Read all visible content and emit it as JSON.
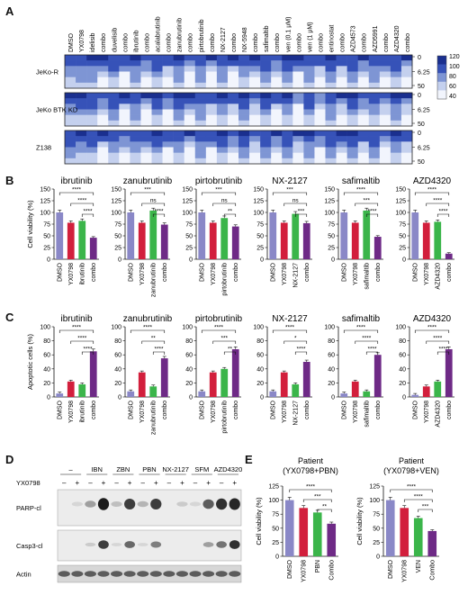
{
  "panels": {
    "a": "A",
    "b": "B",
    "c": "C",
    "d": "D",
    "e": "E"
  },
  "heatmap": {
    "columns": [
      "DMSO",
      "YX0798",
      "idelisib",
      "combo",
      "duvelisib",
      "combo",
      "ibrutinib",
      "combo",
      "acalabrutinib",
      "combo",
      "zanubrutinib",
      "combo",
      "pirtobrutinib",
      "combo",
      "NX-2127",
      "combo",
      "NX-5948",
      "combo",
      "safimaltib",
      "combo",
      "ven (0.1 μM)",
      "combo",
      "ven (1 μM)",
      "combo",
      "entinostat",
      "combo",
      "AZD4573",
      "combo",
      "AZD5991",
      "combo",
      "AZD4320",
      "combo"
    ],
    "rows": [
      {
        "label": "JeKo-R",
        "ticks": [
          "0",
          "6.25",
          "50"
        ]
      },
      {
        "label": "JeKo BTK KD",
        "ticks": [
          "0",
          "6.25",
          "50"
        ]
      },
      {
        "label": "Z138",
        "ticks": [
          "0",
          "6.25",
          "50"
        ]
      }
    ],
    "colorbar": {
      "ticks": [
        "120",
        "100",
        "80",
        "60",
        "40"
      ],
      "colors": [
        "#1a2f8f",
        "#3652b8",
        "#7e95d4",
        "#c4d0ee",
        "#f2f5fd"
      ]
    }
  },
  "viability_bars": {
    "ylabel": "Cell viability (%)",
    "yticks": [
      "0",
      "25",
      "50",
      "75",
      "100",
      "125",
      "150"
    ],
    "groups": [
      {
        "title": "ibrutinib",
        "labels": [
          "DMSO",
          "YX0798",
          "ibrutinib",
          "combo"
        ],
        "sig": [
          "****",
          "****",
          "****"
        ]
      },
      {
        "title": "zanubrutinib",
        "labels": [
          "DMSO",
          "YX0798",
          "zanubrutinib",
          "combo"
        ],
        "sig": [
          "***",
          "ns",
          "****"
        ]
      },
      {
        "title": "pirtobrutinib",
        "labels": [
          "DMSO",
          "YX0798",
          "pirtobrutinib",
          "combo"
        ],
        "sig": [
          "***",
          "ns",
          "**"
        ]
      },
      {
        "title": "NX-2127",
        "labels": [
          "DMSO",
          "YX0798",
          "NX-2127",
          "combo"
        ],
        "sig": [
          "***",
          "ns",
          "***"
        ]
      },
      {
        "title": "safimaltib",
        "labels": [
          "DMSO",
          "YX0798",
          "safimaltib",
          "combo"
        ],
        "sig": [
          "****",
          "***",
          "****"
        ]
      },
      {
        "title": "AZD4320",
        "labels": [
          "DMSO",
          "YX0798",
          "AZD4320",
          "combo"
        ],
        "sig": [
          "****",
          "****",
          "****"
        ]
      }
    ]
  },
  "apoptosis_bars": {
    "ylabel": "Apoptotic cells (%)",
    "yticks": [
      "0",
      "20",
      "40",
      "60",
      "80",
      "100"
    ],
    "groups": [
      {
        "title": "ibrutinib",
        "labels": [
          "DMSO",
          "YX0798",
          "ibrutinib",
          "combo"
        ],
        "sig": [
          "****",
          "****",
          "****"
        ]
      },
      {
        "title": "zanubrutinib",
        "labels": [
          "DMSO",
          "YX0798",
          "zanubrutinib",
          "combo"
        ],
        "sig": [
          "****",
          "**",
          "****"
        ]
      },
      {
        "title": "pirtobrutinib",
        "labels": [
          "DMSO",
          "YX0798",
          "pirtobrutinib",
          "combo"
        ],
        "sig": [
          "****",
          "***",
          "**"
        ]
      },
      {
        "title": "NX-2127",
        "labels": [
          "DMSO",
          "YX0798",
          "NX-2127",
          "combo"
        ],
        "sig": [
          "****",
          "*",
          "****"
        ]
      },
      {
        "title": "safimaltib",
        "labels": [
          "DMSO",
          "YX0798",
          "safimaltib",
          "combo"
        ],
        "sig": [
          "****",
          "****",
          "****"
        ]
      },
      {
        "title": "AZD4320",
        "labels": [
          "DMSO",
          "YX0798",
          "AZD4320",
          "combo"
        ],
        "sig": [
          "****",
          "****",
          "****"
        ]
      }
    ]
  },
  "western": {
    "groups": [
      "–",
      "IBN",
      "ZBN",
      "PBN",
      "NX-2127",
      "SFM",
      "AZD4320"
    ],
    "yx_label": "YX0798",
    "yx_signs": [
      "–",
      "+",
      "–",
      "+",
      "–",
      "+",
      "–",
      "+",
      "–",
      "+",
      "–",
      "+",
      "–",
      "+"
    ],
    "bands": [
      "PARP-cl",
      "Casp3-cl",
      "Actin"
    ]
  },
  "patient_bars": {
    "ylabel": "Cell viability (%)",
    "yticks": [
      "0",
      "25",
      "50",
      "75",
      "100",
      "125"
    ],
    "groups": [
      {
        "title": "Patient\n(YX0798+PBN)",
        "title1": "Patient",
        "title2": "(YX0798+PBN)",
        "labels": [
          "DMSO",
          "YX0798",
          "PBN",
          "Combo"
        ],
        "sig": [
          "****",
          "***",
          "**"
        ]
      },
      {
        "title": "Patient\n(YX0798+VEN)",
        "title1": "Patient",
        "title2": "(YX0798+VEN)",
        "labels": [
          "DMSO",
          "YX0798",
          "VEN",
          "Combo"
        ],
        "sig": [
          "****",
          "****",
          "***"
        ]
      }
    ]
  },
  "chart_data": [
    {
      "type": "bar",
      "title": "ibrutinib",
      "categories": [
        "DMSO",
        "YX0798",
        "ibrutinib",
        "combo"
      ],
      "values": [
        100,
        78,
        82,
        46
      ],
      "ylabel": "Cell viability (%)",
      "ylim": [
        0,
        150
      ]
    },
    {
      "type": "bar",
      "title": "zanubrutinib",
      "categories": [
        "DMSO",
        "YX0798",
        "zanubrutinib",
        "combo"
      ],
      "values": [
        100,
        78,
        104,
        74
      ],
      "ylabel": "Cell viability (%)",
      "ylim": [
        0,
        150
      ]
    },
    {
      "type": "bar",
      "title": "pirtobrutinib",
      "categories": [
        "DMSO",
        "YX0798",
        "pirtobrutinib",
        "combo"
      ],
      "values": [
        100,
        78,
        88,
        70
      ],
      "ylabel": "Cell viability (%)",
      "ylim": [
        0,
        150
      ]
    },
    {
      "type": "bar",
      "title": "NX-2127",
      "categories": [
        "DMSO",
        "YX0798",
        "NX-2127",
        "combo"
      ],
      "values": [
        100,
        78,
        97,
        77
      ],
      "ylabel": "Cell viability (%)",
      "ylim": [
        0,
        150
      ]
    },
    {
      "type": "bar",
      "title": "safimaltib",
      "categories": [
        "DMSO",
        "YX0798",
        "safimaltib",
        "combo"
      ],
      "values": [
        100,
        78,
        104,
        48
      ],
      "ylabel": "Cell viability (%)",
      "ylim": [
        0,
        150
      ]
    },
    {
      "type": "bar",
      "title": "AZD4320",
      "categories": [
        "DMSO",
        "YX0798",
        "AZD4320",
        "combo"
      ],
      "values": [
        100,
        78,
        80,
        12
      ],
      "ylabel": "Cell viability (%)",
      "ylim": [
        0,
        150
      ]
    },
    {
      "type": "bar",
      "title": "ibrutinib",
      "categories": [
        "DMSO",
        "YX0798",
        "ibrutinib",
        "combo"
      ],
      "values": [
        5,
        22,
        18,
        65
      ],
      "ylabel": "Apoptotic cells (%)",
      "ylim": [
        0,
        100
      ]
    },
    {
      "type": "bar",
      "title": "zanubrutinib",
      "categories": [
        "DMSO",
        "YX0798",
        "zanubrutinib",
        "combo"
      ],
      "values": [
        8,
        35,
        15,
        55
      ],
      "ylabel": "Apoptotic cells (%)",
      "ylim": [
        0,
        100
      ]
    },
    {
      "type": "bar",
      "title": "pirtobrutinib",
      "categories": [
        "DMSO",
        "YX0798",
        "pirtobrutinib",
        "combo"
      ],
      "values": [
        8,
        35,
        40,
        68
      ],
      "ylabel": "Apoptotic cells (%)",
      "ylim": [
        0,
        100
      ]
    },
    {
      "type": "bar",
      "title": "NX-2127",
      "categories": [
        "DMSO",
        "YX0798",
        "NX-2127",
        "combo"
      ],
      "values": [
        8,
        35,
        18,
        50
      ],
      "ylabel": "Apoptotic cells (%)",
      "ylim": [
        0,
        100
      ]
    },
    {
      "type": "bar",
      "title": "safimaltib",
      "categories": [
        "DMSO",
        "YX0798",
        "safimaltib",
        "combo"
      ],
      "values": [
        5,
        22,
        8,
        60
      ],
      "ylabel": "Apoptotic cells (%)",
      "ylim": [
        0,
        100
      ]
    },
    {
      "type": "bar",
      "title": "AZD4320",
      "categories": [
        "DMSO",
        "YX0798",
        "AZD4320",
        "combo"
      ],
      "values": [
        3,
        15,
        22,
        68
      ],
      "ylabel": "Apoptotic cells (%)",
      "ylim": [
        0,
        100
      ]
    },
    {
      "type": "bar",
      "title": "Patient (YX0798+PBN)",
      "categories": [
        "DMSO",
        "YX0798",
        "PBN",
        "Combo"
      ],
      "values": [
        100,
        86,
        78,
        58
      ],
      "ylabel": "Cell viability (%)",
      "ylim": [
        0,
        125
      ]
    },
    {
      "type": "bar",
      "title": "Patient (YX0798+VEN)",
      "categories": [
        "DMSO",
        "YX0798",
        "VEN",
        "Combo"
      ],
      "values": [
        100,
        86,
        68,
        45
      ],
      "ylabel": "Cell viability (%)",
      "ylim": [
        0,
        125
      ]
    }
  ],
  "colors": {
    "dmso": "#8a88c7",
    "yx": "#d21f3c",
    "drug": "#3bb54a",
    "combo": "#6e2a86"
  }
}
